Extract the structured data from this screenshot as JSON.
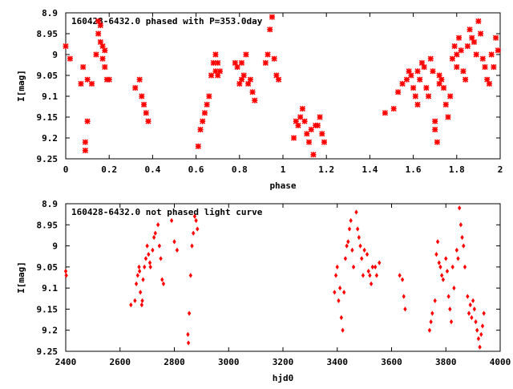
{
  "colors": {
    "points": "#ff0000",
    "axes": "#000000",
    "background": "#ffffff"
  },
  "chart_data": [
    {
      "type": "scatter",
      "title": "160428-6432.0 phased with P=353.0day",
      "xlabel": "phase",
      "ylabel": "I[mag]",
      "xlim": [
        0,
        2
      ],
      "ylim": [
        8.9,
        9.25
      ],
      "y_inverted": true,
      "xticks": [
        "0",
        "0.2",
        "0.4",
        "0.6",
        "0.8",
        "1",
        "1.2",
        "1.4",
        "1.6",
        "1.8",
        "2"
      ],
      "yticks": [
        "8.9",
        "8.95",
        "9",
        "9.05",
        "9.1",
        "9.15",
        "9.2",
        "9.25"
      ],
      "marker": "cross",
      "grid": false,
      "series": [
        {
          "x": [
            0.0,
            0.02,
            0.07,
            0.08,
            0.09,
            0.09,
            0.1,
            0.1,
            0.12,
            0.14,
            0.15,
            0.15,
            0.16,
            0.16,
            0.17,
            0.17,
            0.18,
            0.18,
            0.19,
            0.2,
            0.32,
            0.34,
            0.35,
            0.36,
            0.37,
            0.38,
            0.61,
            0.62,
            0.63,
            0.64,
            0.65,
            0.66,
            0.67,
            0.68,
            0.69,
            0.69,
            0.7,
            0.7,
            0.71,
            0.78,
            0.79,
            0.8,
            0.81,
            0.81,
            0.82,
            0.83,
            0.84,
            0.85,
            0.86,
            0.87,
            0.92,
            0.93,
            0.94,
            0.95,
            0.96,
            0.97,
            0.98,
            1.05,
            1.06,
            1.07,
            1.08,
            1.09,
            1.1,
            1.11,
            1.12,
            1.13,
            1.14,
            1.15,
            1.16,
            1.17,
            1.18,
            1.19,
            1.47,
            1.51,
            1.53,
            1.55,
            1.57,
            1.58,
            1.59,
            1.6,
            1.61,
            1.62,
            1.62,
            1.63,
            1.64,
            1.65,
            1.66,
            1.67,
            1.68,
            1.69,
            1.7,
            1.7,
            1.71,
            1.72,
            1.72,
            1.73,
            1.74,
            1.75,
            1.76,
            1.77,
            1.78,
            1.79,
            1.8,
            1.8,
            1.81,
            1.82,
            1.83,
            1.84,
            1.85,
            1.86,
            1.87,
            1.88,
            1.89,
            1.9,
            1.91,
            1.92,
            1.93,
            1.94,
            1.95,
            1.96,
            1.97,
            1.98,
            1.99
          ],
          "y": [
            8.98,
            9.01,
            9.07,
            9.03,
            9.21,
            9.23,
            9.16,
            9.06,
            9.07,
            9.0,
            8.92,
            8.95,
            8.97,
            8.93,
            9.01,
            8.98,
            9.03,
            8.99,
            9.06,
            9.06,
            9.08,
            9.06,
            9.1,
            9.12,
            9.14,
            9.16,
            9.22,
            9.18,
            9.16,
            9.14,
            9.12,
            9.1,
            9.05,
            9.02,
            9.04,
            9.0,
            9.05,
            9.02,
            9.04,
            9.02,
            9.03,
            9.07,
            9.02,
            9.06,
            9.05,
            9.0,
            9.07,
            9.06,
            9.09,
            9.11,
            9.02,
            9.0,
            8.94,
            8.91,
            9.01,
            9.05,
            9.06,
            9.2,
            9.16,
            9.17,
            9.15,
            9.13,
            9.16,
            9.19,
            9.21,
            9.18,
            9.24,
            9.17,
            9.17,
            9.15,
            9.19,
            9.21,
            9.14,
            9.13,
            9.09,
            9.07,
            9.06,
            9.04,
            9.05,
            9.08,
            9.1,
            9.12,
            9.04,
            9.06,
            9.02,
            9.03,
            9.08,
            9.1,
            9.01,
            9.04,
            9.16,
            9.18,
            9.21,
            9.07,
            9.05,
            9.06,
            9.08,
            9.12,
            9.15,
            9.1,
            9.01,
            8.98,
            9.0,
            9.03,
            8.96,
            8.99,
            9.04,
            9.06,
            8.98,
            8.94,
            8.96,
            8.97,
            9.0,
            8.92,
            8.95,
            9.01,
            9.03,
            9.06,
            9.07,
            9.0,
            9.03,
            8.96,
            8.99
          ],
          "color": "#ff0000"
        }
      ]
    },
    {
      "type": "scatter",
      "title": "160428-6432.0 not phased light curve",
      "xlabel": "hjd0",
      "ylabel": "I[mag]",
      "xlim": [
        2400,
        4000
      ],
      "ylim": [
        8.9,
        9.25
      ],
      "y_inverted": true,
      "xticks": [
        "2400",
        "2600",
        "2800",
        "3000",
        "3200",
        "3400",
        "3600",
        "3800",
        "4000"
      ],
      "yticks": [
        "8.9",
        "8.95",
        "9",
        "9.05",
        "9.1",
        "9.15",
        "9.2",
        "9.25"
      ],
      "marker": "diamond",
      "grid": false,
      "series": [
        {
          "x": [
            2400,
            2402,
            2640,
            2655,
            2660,
            2665,
            2670,
            2672,
            2675,
            2680,
            2682,
            2685,
            2690,
            2695,
            2700,
            2705,
            2710,
            2712,
            2720,
            2725,
            2730,
            2740,
            2745,
            2750,
            2755,
            2760,
            2790,
            2800,
            2810,
            2850,
            2852,
            2855,
            2860,
            2865,
            2870,
            2875,
            2880,
            2885,
            3390,
            3395,
            3400,
            3405,
            3410,
            3415,
            3420,
            3425,
            3430,
            3435,
            3440,
            3445,
            3450,
            3455,
            3460,
            3470,
            3475,
            3480,
            3485,
            3490,
            3495,
            3500,
            3510,
            3515,
            3520,
            3525,
            3530,
            3540,
            3545,
            3555,
            3630,
            3640,
            3645,
            3650,
            3740,
            3745,
            3750,
            3760,
            3765,
            3770,
            3775,
            3780,
            3785,
            3790,
            3800,
            3805,
            3810,
            3815,
            3820,
            3825,
            3830,
            3840,
            3845,
            3850,
            3855,
            3860,
            3865,
            3870,
            3880,
            3885,
            3890,
            3895,
            3900,
            3905,
            3910,
            3915,
            3920,
            3925,
            3930,
            3935,
            3940
          ],
          "y": [
            9.06,
            9.07,
            9.14,
            9.13,
            9.09,
            9.07,
            9.05,
            9.06,
            9.11,
            9.14,
            9.13,
            9.08,
            9.05,
            9.03,
            9.0,
            9.02,
            9.04,
            9.05,
            9.01,
            8.98,
            8.97,
            8.95,
            9.0,
            9.03,
            9.08,
            9.09,
            8.94,
            8.99,
            9.01,
            9.21,
            9.23,
            9.16,
            9.07,
            9.0,
            8.97,
            8.93,
            8.94,
            8.96,
            9.11,
            9.07,
            9.05,
            9.13,
            9.1,
            9.17,
            9.2,
            9.11,
            9.03,
            9.0,
            8.99,
            8.96,
            8.94,
            9.01,
            9.05,
            8.92,
            8.96,
            8.98,
            9.0,
            9.03,
            9.07,
            9.01,
            9.02,
            9.06,
            9.07,
            9.09,
            9.05,
            9.05,
            9.07,
            9.04,
            9.07,
            9.08,
            9.12,
            9.15,
            9.2,
            9.18,
            9.16,
            9.13,
            9.02,
            8.99,
            9.04,
            9.05,
            9.07,
            9.08,
            9.03,
            9.06,
            9.12,
            9.15,
            9.18,
            9.05,
            9.1,
            9.01,
            9.03,
            8.91,
            8.95,
            8.98,
            9.0,
            9.05,
            9.12,
            9.16,
            9.14,
            9.17,
            9.13,
            9.15,
            9.18,
            9.2,
            9.22,
            9.24,
            9.21,
            9.19,
            9.16
          ],
          "color": "#ff0000"
        }
      ]
    }
  ]
}
